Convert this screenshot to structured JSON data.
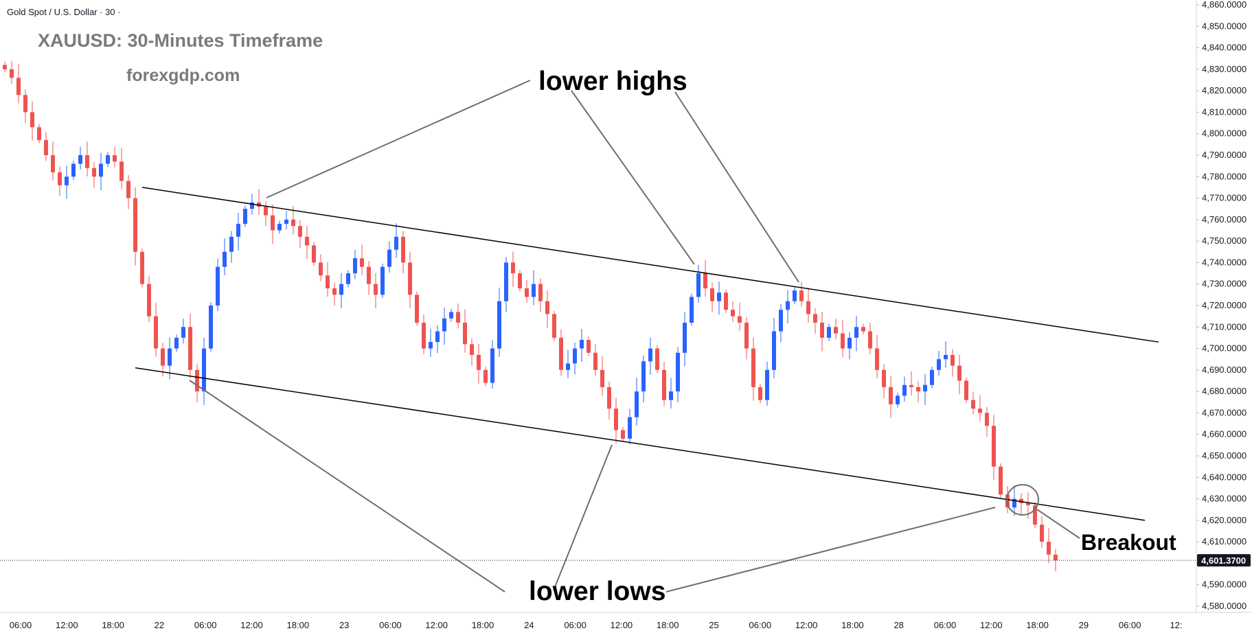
{
  "header": {
    "symbol_line": "Gold Spot / U.S. Dollar · 30 ·",
    "title": "XAUUSD: 30-Minutes Timeframe",
    "site": "forexgdp.com"
  },
  "annotations": {
    "upper": "lower highs",
    "lower": "lower lows",
    "breakout": "Breakout"
  },
  "last_price_label": "4,601.3700",
  "colors": {
    "up": "#2962ff",
    "down": "#ef5350",
    "trendline": "#000000",
    "pointer": "#6e6e6e",
    "price_tag_bg": "#131722"
  },
  "chart_data": {
    "type": "candlestick",
    "symbol": "XAUUSD",
    "timeframe": "30",
    "ylim": [
      4575,
      4862
    ],
    "y_ticks": [
      "4,580.0000",
      "4,590.0000",
      "4,600.0000",
      "4,610.0000",
      "4,620.0000",
      "4,630.0000",
      "4,640.0000",
      "4,650.0000",
      "4,660.0000",
      "4,670.0000",
      "4,680.0000",
      "4,690.0000",
      "4,700.0000",
      "4,710.0000",
      "4,720.0000",
      "4,730.0000",
      "4,740.0000",
      "4,750.0000",
      "4,760.0000",
      "4,770.0000",
      "4,780.0000",
      "4,790.0000",
      "4,800.0000",
      "4,810.0000",
      "4,820.0000",
      "4,830.0000",
      "4,840.0000",
      "4,850.0000",
      "4,860.0000"
    ],
    "x_ticks": [
      "06:00",
      "12:00",
      "18:00",
      "22",
      "06:00",
      "12:00",
      "18:00",
      "23",
      "06:00",
      "12:00",
      "18:00",
      "24",
      "06:00",
      "12:00",
      "18:00",
      "25",
      "06:00",
      "12:00",
      "18:00",
      "28",
      "06:00",
      "12:00",
      "18:00",
      "29",
      "06:00",
      "12:"
    ],
    "last_price": 4601.37,
    "close_path": [
      4830,
      4826,
      4818,
      4810,
      4803,
      4797,
      4790,
      4782,
      4776,
      4780,
      4786,
      4790,
      4784,
      4780,
      4786,
      4790,
      4787,
      4778,
      4770,
      4745,
      4730,
      4715,
      4700,
      4692,
      4700,
      4705,
      4710,
      4690,
      4680,
      4700,
      4720,
      4738,
      4745,
      4752,
      4758,
      4765,
      4768,
      4766,
      4762,
      4755,
      4758,
      4760,
      4757,
      4752,
      4748,
      4740,
      4734,
      4728,
      4725,
      4730,
      4735,
      4742,
      4738,
      4730,
      4725,
      4738,
      4746,
      4752,
      4740,
      4725,
      4712,
      4700,
      4703,
      4708,
      4714,
      4717,
      4712,
      4702,
      4697,
      4690,
      4684,
      4700,
      4722,
      4740,
      4735,
      4728,
      4724,
      4730,
      4722,
      4716,
      4705,
      4690,
      4693,
      4700,
      4704,
      4698,
      4690,
      4682,
      4672,
      4662,
      4658,
      4668,
      4680,
      4694,
      4700,
      4690,
      4676,
      4680,
      4698,
      4712,
      4724,
      4735,
      4728,
      4722,
      4726,
      4718,
      4715,
      4712,
      4700,
      4682,
      4676,
      4690,
      4708,
      4718,
      4722,
      4727,
      4722,
      4716,
      4712,
      4705,
      4710,
      4707,
      4700,
      4705,
      4710,
      4708,
      4700,
      4690,
      4682,
      4674,
      4678,
      4683,
      4682,
      4680,
      4683,
      4690,
      4695,
      4697,
      4692,
      4685,
      4676,
      4672,
      4670,
      4664,
      4645,
      4632,
      4626,
      4630,
      4628,
      4627,
      4618,
      4610,
      4604,
      4601.37
    ],
    "trendlines": [
      {
        "name": "upper",
        "from": {
          "bar": 16,
          "price": 4775
        },
        "to": {
          "bar": 151,
          "price": 4703
        }
      },
      {
        "name": "lower",
        "from": {
          "bar": 15,
          "price": 4691
        },
        "to": {
          "bar": 149,
          "price": 4620
        }
      }
    ]
  }
}
